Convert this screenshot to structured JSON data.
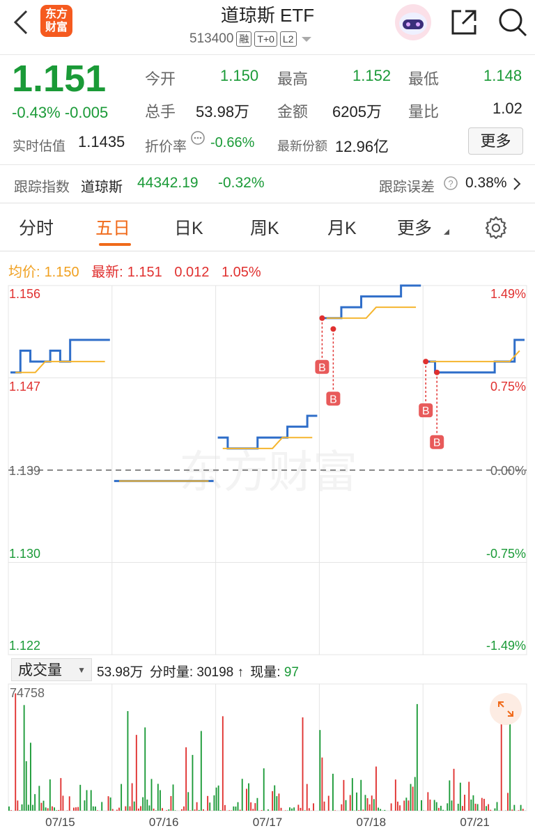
{
  "header": {
    "title": "道琼斯 ETF",
    "code": "513400",
    "tags": [
      "融",
      "T+0",
      "L2"
    ],
    "logo_line1": "东方",
    "logo_line2": "财富"
  },
  "quote": {
    "price": "1.151",
    "change_pct": "-0.43%",
    "change": "-0.005",
    "open_label": "今开",
    "open": "1.150",
    "high_label": "最高",
    "high": "1.152",
    "low_label": "最低",
    "low": "1.148",
    "volume_label": "总手",
    "volume": "53.98万",
    "amount_label": "金额",
    "amount": "6205万",
    "ratio_label": "量比",
    "ratio": "1.02",
    "iopv_label": "实时估值",
    "iopv": "1.1435",
    "discount_label": "折价率",
    "discount": "-0.66%",
    "shares_label": "最新份额",
    "shares": "12.96亿",
    "more": "更多"
  },
  "tracking": {
    "index_label": "跟踪指数",
    "index_name": "道琼斯",
    "index_value": "44342.19",
    "index_change": "-0.32%",
    "error_label": "跟踪误差",
    "error_value": "0.38%"
  },
  "tabs": [
    "分时",
    "五日",
    "日K",
    "周K",
    "月K",
    "更多"
  ],
  "legend": {
    "avg_label": "均价:",
    "avg": "1.150",
    "last_label": "最新:",
    "last": "1.151",
    "chg": "0.012",
    "chg_pct": "1.05%"
  },
  "volume_bar": {
    "selector": "成交量",
    "total": "53.98万",
    "minute_label": "分时量:",
    "minute": "30198",
    "current_label": "现量:",
    "current": "97"
  },
  "watermark": "东方财富",
  "colors": {
    "up": "#e0302f",
    "down": "#1a9a37",
    "price_line": "#2f6ec9",
    "avg_line": "#f5b52e",
    "accent": "#f06a1a"
  },
  "chart_data": {
    "type": "line",
    "title": "",
    "days": [
      "07/15",
      "07/16",
      "07/17",
      "07/18",
      "07/21"
    ],
    "y_left_ticks": [
      "1.156",
      "1.147",
      "1.139",
      "1.130",
      "1.122"
    ],
    "y_right_ticks": [
      "1.49%",
      "0.75%",
      "0.00%",
      "-0.75%",
      "-1.49%"
    ],
    "ylim": [
      1.122,
      1.156
    ],
    "prev_close": 1.139,
    "series": [
      {
        "name": "price",
        "values": [
          [
            1.148,
            1.15,
            1.149,
            1.149,
            1.15,
            1.149,
            1.151,
            1.151,
            1.151,
            1.151
          ],
          [
            1.138,
            1.138,
            1.138,
            1.138,
            1.138,
            1.138,
            1.138,
            1.138,
            1.138,
            1.138
          ],
          [
            1.142,
            1.141,
            1.141,
            1.141,
            1.142,
            1.142,
            1.142,
            1.143,
            1.143,
            1.144
          ],
          [
            1.153,
            1.153,
            1.154,
            1.154,
            1.155,
            1.155,
            1.155,
            1.155,
            1.156,
            1.156
          ],
          [
            1.149,
            1.148,
            1.148,
            1.148,
            1.148,
            1.148,
            1.148,
            1.149,
            1.149,
            1.151
          ]
        ]
      },
      {
        "name": "avg",
        "values": [
          [
            1.148,
            1.148,
            1.148,
            1.149,
            1.149,
            1.149,
            1.149,
            1.149,
            1.149,
            1.149
          ],
          [
            1.138,
            1.138,
            1.138,
            1.138,
            1.138,
            1.138,
            1.138,
            1.138,
            1.138,
            1.138
          ],
          [
            1.141,
            1.141,
            1.141,
            1.141,
            1.141,
            1.141,
            1.142,
            1.142,
            1.142,
            1.142
          ],
          [
            1.153,
            1.153,
            1.153,
            1.153,
            1.153,
            1.154,
            1.154,
            1.154,
            1.154,
            1.154
          ],
          [
            1.149,
            1.149,
            1.149,
            1.149,
            1.149,
            1.149,
            1.149,
            1.149,
            1.149,
            1.15
          ]
        ]
      }
    ],
    "markers": [
      {
        "day": "07/18",
        "label": "B",
        "price": 1.153
      },
      {
        "day": "07/18",
        "label": "B",
        "price": 1.152
      },
      {
        "day": "07/21",
        "label": "B",
        "price": 1.149
      },
      {
        "day": "07/21",
        "label": "B",
        "price": 1.148
      }
    ],
    "volume": {
      "max_label": "74758",
      "max": 74758
    }
  }
}
